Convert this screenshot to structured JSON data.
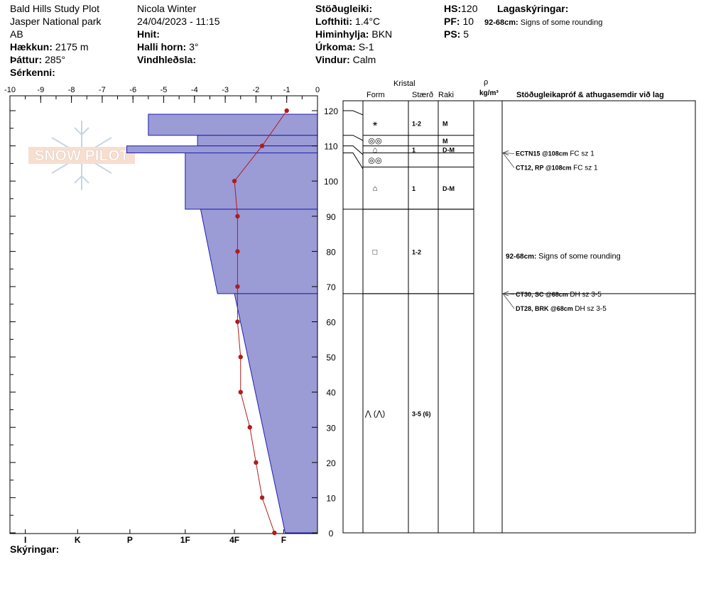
{
  "header": {
    "location_name": "Bald Hills Study Plot",
    "park": "Jasper National park",
    "province": "AB",
    "elevation_label": "Hækkun:",
    "elevation_value": "2175 m",
    "aspect_label": "Þáttur:",
    "aspect_value": "285°",
    "special_label": "Sérkenni:",
    "observer": "Nicola Winter",
    "datetime": "24/04/2023 - 11:15",
    "coords_label": "Hnit:",
    "slope_label": "Halli horn:",
    "slope_value": "3°",
    "wind_loading_label": "Vindhleðsla:",
    "stability_label": "Stöðugleiki:",
    "air_temp_label": "Lofthiti:",
    "air_temp_value": "1.4°C",
    "sky_label": "Himinhylja:",
    "sky_value": "BKN",
    "precip_label": "Úrkoma:",
    "precip_value": "S-1",
    "wind_label": "Vindur:",
    "wind_value": "Calm",
    "hs_label": "HS:",
    "hs_value": "120",
    "pf_label": "PF:",
    "pf_value": "10",
    "ps_label": "PS:",
    "ps_value": "5",
    "layer_notes_label": "Lagaskýringar:",
    "layer_note_range": "92-68cm:",
    "layer_note_text": "Signs of some rounding"
  },
  "table_headers": {
    "crystal": "Kristal",
    "form": "Form",
    "size": "Stærð",
    "moisture": "Raki",
    "rho": "ρ",
    "density_unit": "kg/m³",
    "tests": "Stöðugleikapróf & athugasemdir við lag"
  },
  "footer": {
    "notes_label": "Skýringar:"
  },
  "chart_data": {
    "type": "snow_profile",
    "temp_axis": {
      "min": -10,
      "max": 0,
      "ticks": [
        "-10",
        "-9",
        "-8",
        "-7",
        "-6",
        "-5",
        "-4",
        "-3",
        "-2",
        "-1",
        "0"
      ]
    },
    "height_axis": {
      "min": 0,
      "max": 120,
      "ticks": [
        "0",
        "10",
        "20",
        "30",
        "40",
        "50",
        "60",
        "70",
        "80",
        "90",
        "100",
        "110",
        "120"
      ]
    },
    "hardness_labels": [
      "I",
      "K",
      "P",
      "1F",
      "4F",
      "F"
    ],
    "temperature_profile": [
      {
        "h": 120,
        "t": -1.0
      },
      {
        "h": 110,
        "t": -1.8
      },
      {
        "h": 100,
        "t": -2.7
      },
      {
        "h": 90,
        "t": -2.6
      },
      {
        "h": 80,
        "t": -2.6
      },
      {
        "h": 70,
        "t": -2.6
      },
      {
        "h": 60,
        "t": -2.6
      },
      {
        "h": 50,
        "t": -2.5
      },
      {
        "h": 40,
        "t": -2.5
      },
      {
        "h": 30,
        "t": -2.2
      },
      {
        "h": 20,
        "t": -2.0
      },
      {
        "h": 10,
        "t": -1.8
      },
      {
        "h": 0,
        "t": -1.4
      }
    ],
    "hardness_profile": [
      {
        "top": 120,
        "bottom": 119,
        "pos": 0
      },
      {
        "top": 119,
        "bottom": 113,
        "pos": 5.5
      },
      {
        "top": 113,
        "bottom": 110,
        "pos": 3.9
      },
      {
        "top": 110,
        "bottom": 108,
        "pos": 6.2
      },
      {
        "top": 108,
        "bottom": 92,
        "pos": 4.3
      },
      {
        "top": 92,
        "bottom": 68,
        "pos": [
          3.8,
          3.25
        ],
        "gradient": true
      },
      {
        "top": 68,
        "bottom": 0,
        "pos": [
          2.7,
          1.05
        ],
        "gradient": true
      }
    ],
    "layers": [
      {
        "top": 120,
        "bottom": 113,
        "form": "⚹",
        "size": "1-2",
        "moisture": "M"
      },
      {
        "top": 113,
        "bottom": 110,
        "form": "◎◎",
        "size": "",
        "moisture": "M"
      },
      {
        "top": 110,
        "bottom": 108,
        "form": "⌂",
        "size": "1",
        "moisture": "D-M"
      },
      {
        "top": 108,
        "bottom": 104,
        "form": "◎◎",
        "size": "",
        "moisture": ""
      },
      {
        "top": 104,
        "bottom": 92,
        "form": "⌂",
        "size": "1",
        "moisture": "D-M"
      },
      {
        "top": 92,
        "bottom": 68,
        "form": "□",
        "size": "1-2",
        "moisture": ""
      },
      {
        "top": 68,
        "bottom": 0,
        "form": "⋀ (⋀)",
        "size": "3-5 (6)",
        "moisture": ""
      }
    ],
    "tests": [
      {
        "at": 108,
        "code": "ECTN15 @108cm",
        "detail": "FC sz 1",
        "row": 0
      },
      {
        "at": 108,
        "code": "CT12, RP @108cm",
        "detail": "FC sz 1",
        "row": 1
      },
      {
        "at": 68,
        "code": "CT30, SC @68cm",
        "detail": "DH sz 3-5",
        "row": 0
      },
      {
        "at": 68,
        "code": "DT28, BRK @68cm",
        "detail": "DH sz 3-5",
        "row": 1
      }
    ],
    "comments": [
      {
        "range": "92-68cm:",
        "text": "Signs of some rounding",
        "at": 80
      }
    ],
    "colors": {
      "hardness_fill": "#9b9bd6",
      "hardness_stroke": "#1f1fb0",
      "temperature": "#b01c1c"
    }
  },
  "watermark": {
    "text": "SNOW PILOT"
  }
}
